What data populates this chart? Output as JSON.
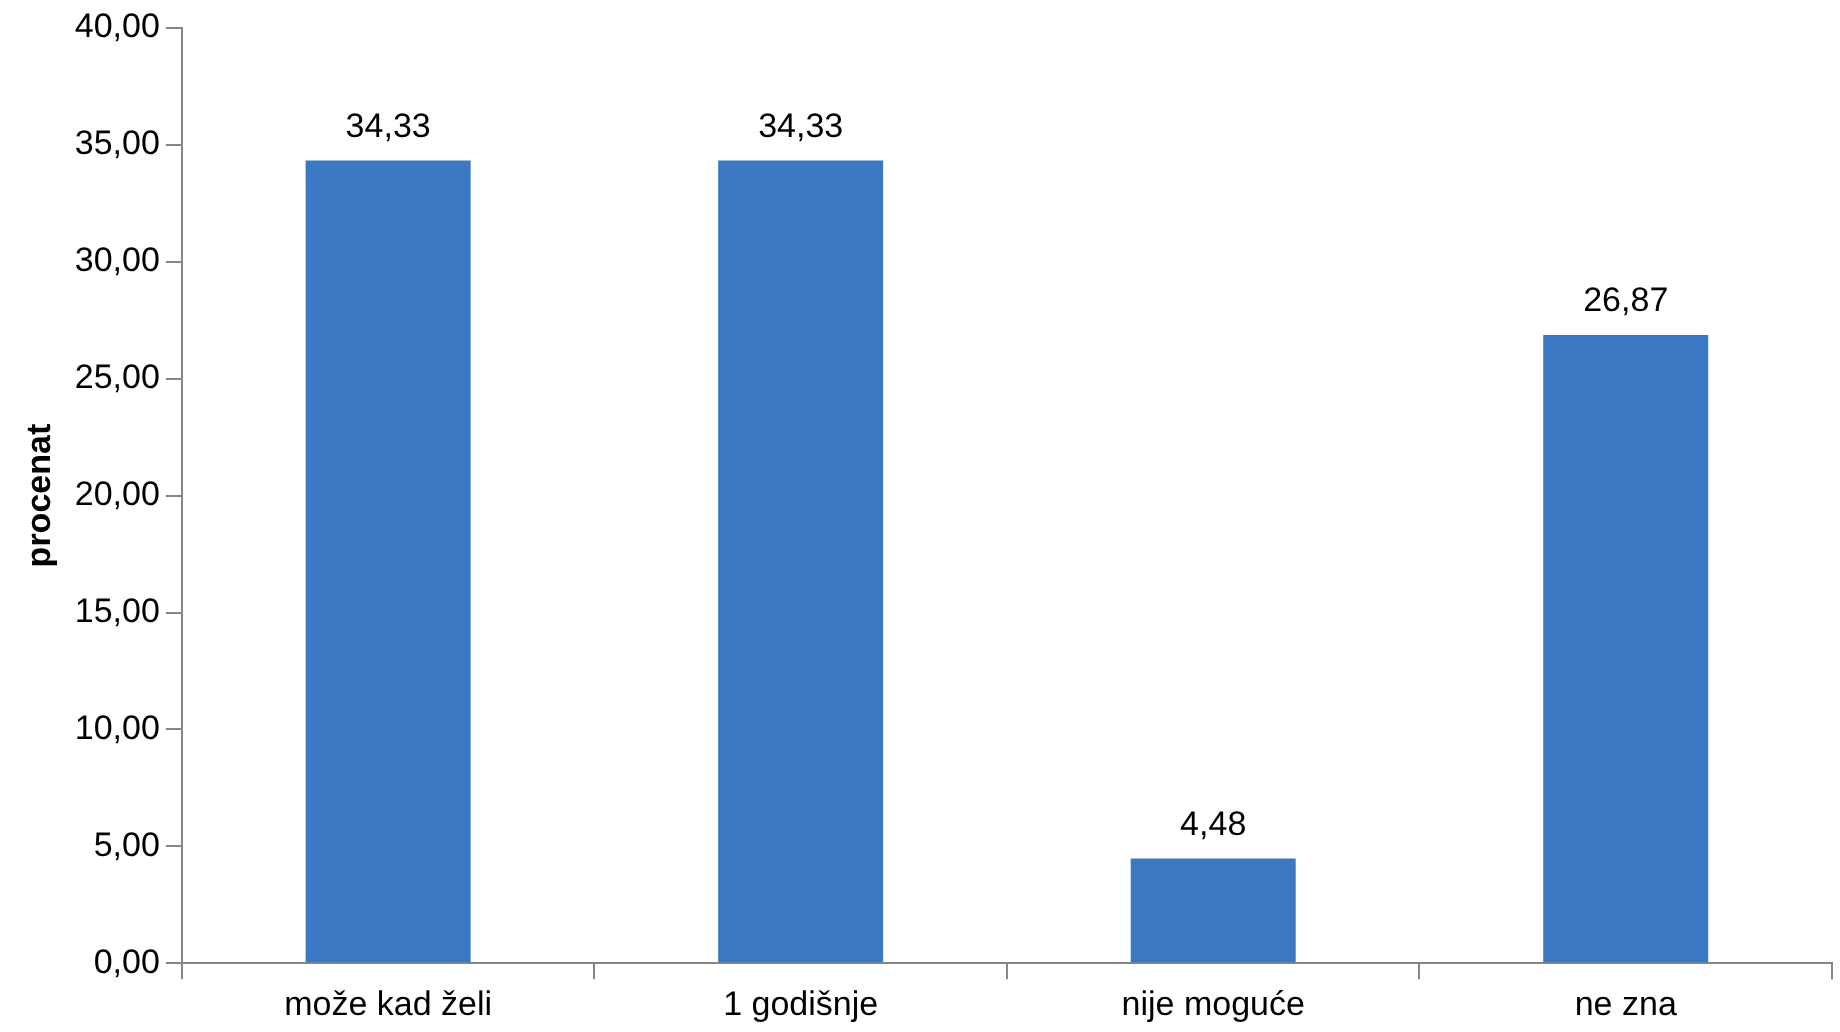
{
  "chart_data": {
    "type": "bar",
    "ylabel": "procenat",
    "categories": [
      "može kad želi",
      "1 godišnje",
      "nije moguće",
      "ne zna"
    ],
    "values": [
      34.33,
      34.33,
      4.48,
      26.87
    ],
    "value_labels": [
      "34,33",
      "34,33",
      "4,48",
      "26,87"
    ],
    "color": "#3a78c4",
    "ylim": [
      0,
      40
    ],
    "yticks": [
      {
        "value": 0,
        "label": "0,00"
      },
      {
        "value": 5,
        "label": "5,00"
      },
      {
        "value": 10,
        "label": "10,00"
      },
      {
        "value": 15,
        "label": "15,00"
      },
      {
        "value": 20,
        "label": "20,00"
      },
      {
        "value": 25,
        "label": "25,00"
      },
      {
        "value": 30,
        "label": "30,00"
      },
      {
        "value": 35,
        "label": "35,00"
      },
      {
        "value": 40,
        "label": "40,00"
      }
    ],
    "grid": false,
    "legend": false
  }
}
